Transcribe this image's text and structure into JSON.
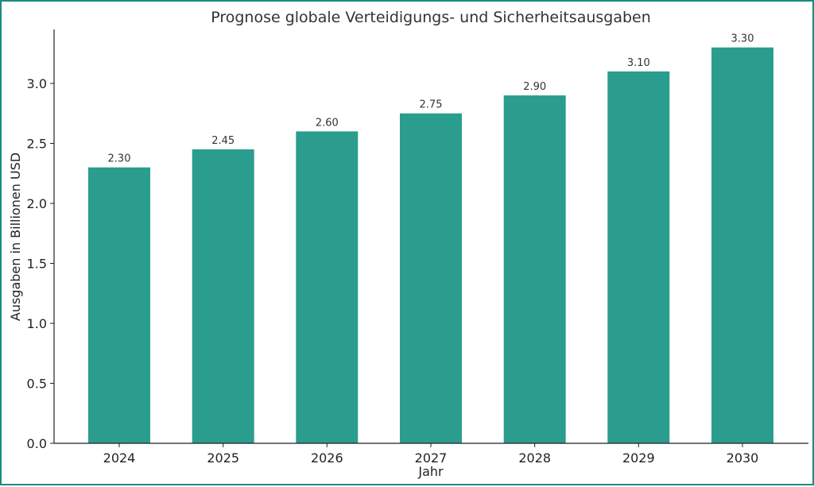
{
  "chart_data": {
    "type": "bar",
    "title": "Prognose globale Verteidigungs- und Sicherheitsausgaben",
    "xlabel": "Jahr",
    "ylabel": "Ausgaben in Billionen USD",
    "categories": [
      "2024",
      "2025",
      "2026",
      "2027",
      "2028",
      "2029",
      "2030"
    ],
    "values": [
      2.3,
      2.45,
      2.6,
      2.75,
      2.9,
      3.1,
      3.3
    ],
    "data_labels": [
      "2.30",
      "2.45",
      "2.60",
      "2.75",
      "2.90",
      "3.10",
      "3.30"
    ],
    "yticks": [
      0.0,
      0.5,
      1.0,
      1.5,
      2.0,
      2.5,
      3.0
    ],
    "ytick_labels": [
      "0.0",
      "0.5",
      "1.0",
      "1.5",
      "2.0",
      "2.5",
      "3.0"
    ],
    "ylim": [
      0,
      3.45
    ],
    "grid": false,
    "bar_color": "#2a9d8f"
  }
}
